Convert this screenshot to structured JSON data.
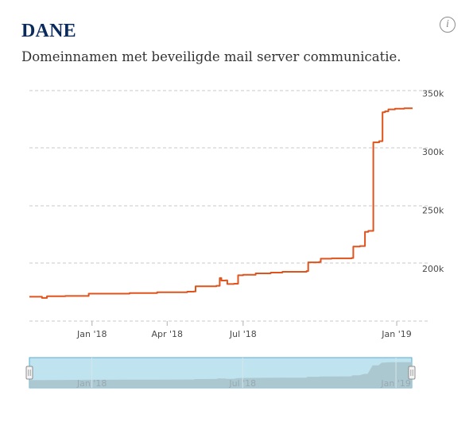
{
  "header": {
    "title": "DANE",
    "subtitle": "Domeinnamen met beveiligde mail server communicatie.",
    "info_icon": "info-icon"
  },
  "colors": {
    "title": "#0b2a5c",
    "line": "#e0531c",
    "grid": "#c8c8c8",
    "navigator_fill": "#bfe3ef",
    "navigator_border": "#5aaed0",
    "navigator_area": "#a9c4cc"
  },
  "chart_data": {
    "type": "line",
    "title": "DANE",
    "subtitle": "Domeinnamen met beveiligde mail server communicatie.",
    "xlabel": "",
    "ylabel": "",
    "x_range": [
      "2017-10-18",
      "2019-01-20"
    ],
    "ylim": [
      155000,
      355000
    ],
    "y_ticks": [
      200000,
      250000,
      300000,
      350000
    ],
    "y_tick_labels": [
      "200k",
      "250k",
      "300k",
      "350k"
    ],
    "x_ticks": [
      "2018-01-01",
      "2018-04-01",
      "2018-07-01",
      "2019-01-01"
    ],
    "x_tick_labels": [
      "Jan '18",
      "Apr '18",
      "Jul '18",
      "Jan '19"
    ],
    "grid": true,
    "legend": "none",
    "series": [
      {
        "x": [
          "2017-10-18",
          "2017-11-01",
          "2017-11-02",
          "2017-11-08",
          "2017-11-30",
          "2017-12-28",
          "2018-02-15",
          "2018-03-20",
          "2018-04-25",
          "2018-05-03",
          "2018-05-05",
          "2018-05-30",
          "2018-06-03",
          "2018-06-05",
          "2018-06-10",
          "2018-06-12",
          "2018-06-20",
          "2018-06-25",
          "2018-07-01",
          "2018-07-16",
          "2018-08-03",
          "2018-08-17",
          "2018-09-15",
          "2018-09-17",
          "2018-09-30",
          "2018-10-02",
          "2018-10-15",
          "2018-11-08",
          "2018-11-10",
          "2018-11-18",
          "2018-11-24",
          "2018-11-28",
          "2018-12-04",
          "2018-12-11",
          "2018-12-15",
          "2018-12-18",
          "2018-12-22",
          "2018-12-30",
          "2019-01-10",
          "2019-01-20"
        ],
        "y": [
          175800,
          175800,
          174800,
          176200,
          176500,
          178500,
          179000,
          179600,
          180200,
          180400,
          184700,
          185200,
          191800,
          189700,
          189800,
          186700,
          187000,
          194200,
          194600,
          195800,
          196500,
          197200,
          197800,
          205300,
          205600,
          208400,
          208700,
          209000,
          218800,
          219200,
          231400,
          232200,
          308000,
          309000,
          333800,
          334500,
          336200,
          336800,
          337200,
          337200
        ]
      }
    ],
    "navigator": {
      "x_tick_labels": [
        "Jan '18",
        "Jul '18",
        "Jan '19"
      ]
    }
  }
}
